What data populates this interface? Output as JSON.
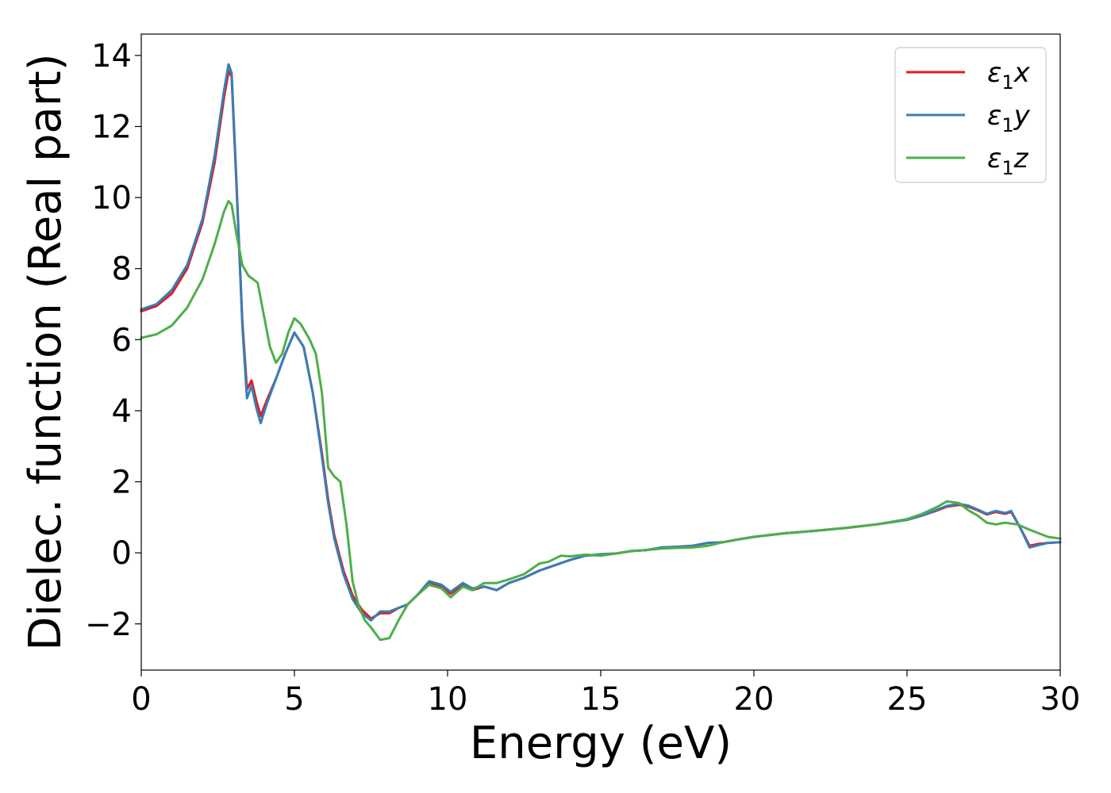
{
  "chart_data": {
    "type": "line",
    "title": "",
    "xlabel": "Energy (eV)",
    "ylabel": "Dielec. function (Real part)",
    "xlim": [
      0,
      30
    ],
    "ylim": [
      -3.3,
      14.6
    ],
    "xticks": [
      0,
      5,
      10,
      15,
      20,
      25,
      30
    ],
    "xtick_labels": [
      "0",
      "5",
      "10",
      "15",
      "20",
      "25",
      "30"
    ],
    "yticks": [
      -2,
      0,
      2,
      4,
      6,
      8,
      10,
      12,
      14
    ],
    "ytick_labels": [
      "−2",
      "0",
      "2",
      "4",
      "6",
      "8",
      "10",
      "12",
      "14"
    ],
    "grid": false,
    "legend_position": "top-right",
    "series": [
      {
        "name": "ε₁x",
        "legend": {
          "base": "ε",
          "sub": "1",
          "var": "x"
        },
        "color": "#e41a1c",
        "x": [
          0,
          0.5,
          1,
          1.5,
          2,
          2.4,
          2.7,
          2.85,
          2.95,
          3.1,
          3.3,
          3.45,
          3.6,
          3.75,
          3.9,
          4.1,
          4.4,
          4.7,
          5.0,
          5.3,
          5.6,
          5.9,
          6.1,
          6.3,
          6.6,
          6.9,
          7.2,
          7.5,
          7.8,
          8.1,
          8.4,
          8.7,
          9.0,
          9.4,
          9.8,
          10.1,
          10.5,
          10.8,
          11.2,
          11.6,
          12.0,
          12.5,
          13.0,
          13.5,
          14.0,
          14.5,
          15.0,
          15.5,
          16.0,
          16.5,
          17.0,
          17.5,
          18.0,
          18.5,
          19.0,
          19.5,
          20.0,
          21,
          22,
          23,
          24,
          25,
          25.5,
          26.0,
          26.3,
          26.7,
          27.0,
          27.3,
          27.6,
          27.9,
          28.2,
          28.4,
          28.7,
          29.0,
          29.3,
          29.6,
          30.0
        ],
        "y": [
          6.8,
          6.95,
          7.3,
          8.0,
          9.3,
          11.0,
          12.8,
          13.55,
          13.4,
          10.5,
          6.5,
          4.6,
          4.85,
          4.3,
          3.85,
          4.3,
          4.9,
          5.6,
          6.2,
          5.8,
          4.5,
          2.8,
          1.5,
          0.5,
          -0.5,
          -1.2,
          -1.6,
          -1.85,
          -1.7,
          -1.7,
          -1.55,
          -1.45,
          -1.2,
          -0.85,
          -0.95,
          -1.15,
          -0.9,
          -1.05,
          -0.95,
          -1.05,
          -0.85,
          -0.7,
          -0.5,
          -0.35,
          -0.2,
          -0.08,
          -0.05,
          -0.02,
          0.05,
          0.08,
          0.15,
          0.17,
          0.2,
          0.28,
          0.3,
          0.38,
          0.45,
          0.55,
          0.62,
          0.7,
          0.8,
          0.93,
          1.05,
          1.2,
          1.3,
          1.35,
          1.3,
          1.2,
          1.08,
          1.15,
          1.1,
          1.15,
          0.7,
          0.2,
          0.25,
          0.28,
          0.3
        ]
      },
      {
        "name": "ε₁y",
        "legend": {
          "base": "ε",
          "sub": "1",
          "var": "y"
        },
        "color": "#377eb8",
        "x": [
          0,
          0.5,
          1,
          1.5,
          2,
          2.4,
          2.7,
          2.85,
          2.95,
          3.1,
          3.3,
          3.45,
          3.6,
          3.75,
          3.9,
          4.1,
          4.4,
          4.7,
          5.0,
          5.3,
          5.6,
          5.9,
          6.1,
          6.3,
          6.6,
          6.9,
          7.2,
          7.5,
          7.8,
          8.1,
          8.4,
          8.7,
          9.0,
          9.4,
          9.8,
          10.1,
          10.5,
          10.8,
          11.2,
          11.6,
          12.0,
          12.5,
          13.0,
          13.5,
          14.0,
          14.5,
          15.0,
          15.5,
          16.0,
          16.5,
          17.0,
          17.5,
          18.0,
          18.5,
          19.0,
          19.5,
          20.0,
          21,
          22,
          23,
          24,
          25,
          25.5,
          26.0,
          26.3,
          26.7,
          27.0,
          27.3,
          27.6,
          27.9,
          28.2,
          28.4,
          28.7,
          29.0,
          29.3,
          29.6,
          30.0
        ],
        "y": [
          6.85,
          7.0,
          7.4,
          8.1,
          9.4,
          11.2,
          13.0,
          13.75,
          13.5,
          10.6,
          6.4,
          4.35,
          4.7,
          4.1,
          3.65,
          4.2,
          4.9,
          5.6,
          6.2,
          5.8,
          4.5,
          2.7,
          1.4,
          0.4,
          -0.6,
          -1.3,
          -1.7,
          -1.9,
          -1.65,
          -1.65,
          -1.55,
          -1.45,
          -1.2,
          -0.8,
          -0.9,
          -1.1,
          -0.85,
          -1.0,
          -0.95,
          -1.05,
          -0.85,
          -0.7,
          -0.5,
          -0.35,
          -0.2,
          -0.08,
          -0.04,
          -0.02,
          0.05,
          0.08,
          0.15,
          0.17,
          0.2,
          0.28,
          0.3,
          0.38,
          0.45,
          0.55,
          0.62,
          0.7,
          0.8,
          0.93,
          1.05,
          1.22,
          1.32,
          1.38,
          1.33,
          1.22,
          1.1,
          1.18,
          1.12,
          1.18,
          0.7,
          0.15,
          0.22,
          0.28,
          0.3
        ]
      },
      {
        "name": "ε₁z",
        "legend": {
          "base": "ε",
          "sub": "1",
          "var": "z"
        },
        "color": "#4daf4a",
        "x": [
          0,
          0.5,
          1,
          1.5,
          2,
          2.4,
          2.7,
          2.85,
          2.95,
          3.1,
          3.3,
          3.5,
          3.8,
          4.0,
          4.2,
          4.4,
          4.6,
          4.8,
          5.0,
          5.2,
          5.5,
          5.7,
          5.9,
          6.1,
          6.3,
          6.5,
          6.7,
          6.9,
          7.1,
          7.3,
          7.5,
          7.8,
          8.1,
          8.4,
          8.7,
          9.0,
          9.4,
          9.8,
          10.1,
          10.5,
          10.8,
          11.2,
          11.6,
          12.0,
          12.5,
          13.0,
          13.3,
          13.7,
          14.0,
          14.5,
          15.0,
          15.5,
          16.0,
          16.5,
          17.0,
          17.5,
          18.0,
          18.5,
          19.0,
          19.5,
          20.0,
          21,
          22,
          23,
          24,
          25,
          25.5,
          26.0,
          26.3,
          26.7,
          27.0,
          27.3,
          27.6,
          27.9,
          28.2,
          28.6,
          29.0,
          29.3,
          29.6,
          30.0
        ],
        "y": [
          6.05,
          6.15,
          6.4,
          6.9,
          7.7,
          8.7,
          9.6,
          9.9,
          9.8,
          9.0,
          8.1,
          7.8,
          7.6,
          6.7,
          5.8,
          5.35,
          5.6,
          6.2,
          6.6,
          6.45,
          6.0,
          5.6,
          4.5,
          2.4,
          2.15,
          2.0,
          0.8,
          -0.8,
          -1.5,
          -1.9,
          -2.1,
          -2.45,
          -2.4,
          -1.9,
          -1.45,
          -1.2,
          -0.9,
          -1.0,
          -1.25,
          -0.95,
          -1.05,
          -0.85,
          -0.85,
          -0.75,
          -0.6,
          -0.3,
          -0.25,
          -0.08,
          -0.1,
          -0.05,
          -0.08,
          -0.02,
          0.05,
          0.08,
          0.12,
          0.14,
          0.15,
          0.2,
          0.3,
          0.38,
          0.45,
          0.55,
          0.62,
          0.7,
          0.8,
          0.95,
          1.1,
          1.3,
          1.45,
          1.4,
          1.2,
          1.05,
          0.85,
          0.8,
          0.85,
          0.8,
          0.65,
          0.55,
          0.45,
          0.4
        ]
      }
    ]
  }
}
